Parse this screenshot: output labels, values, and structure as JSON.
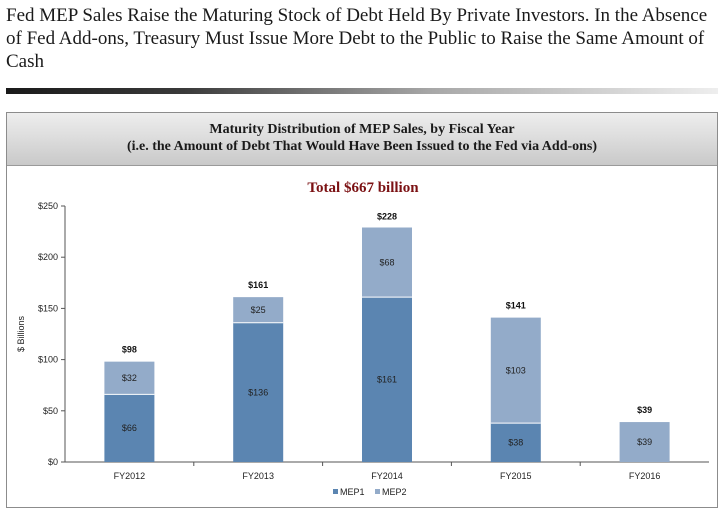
{
  "slide": {
    "title": "Fed MEP Sales Raise the Maturing Stock of  Debt Held By Private Investors. In the Absence of  Fed Add-ons, Treasury Must Issue More Debt to the Public to Raise the Same Amount of  Cash"
  },
  "chart_header": {
    "line1": "Maturity Distribution of MEP Sales, by Fiscal Year",
    "line2": "(i.e.  the Amount of Debt That Would Have Been Issued to the Fed via Add-ons)"
  },
  "colors": {
    "mep1": "#5b85b1",
    "mep2": "#93abc9",
    "total_label": "#7b1113",
    "axis": "#555555"
  },
  "chart_data": {
    "type": "bar",
    "stacked": true,
    "title": "Total $667 billion",
    "ylabel": "$ Billions",
    "xlabel": "",
    "ylim": [
      0,
      250
    ],
    "yticks": [
      0,
      50,
      100,
      150,
      200,
      250
    ],
    "ytick_labels": [
      "$0",
      "$50",
      "$100",
      "$150",
      "$200",
      "$250"
    ],
    "categories": [
      "FY2012",
      "FY2013",
      "FY2014",
      "FY2015",
      "FY2016"
    ],
    "series": [
      {
        "name": "MEP1",
        "values": [
          66,
          136,
          161,
          38,
          0
        ],
        "labels": [
          "$66",
          "$136",
          "$161",
          "$38",
          ""
        ]
      },
      {
        "name": "MEP2",
        "values": [
          32,
          25,
          68,
          103,
          39
        ],
        "labels": [
          "$32",
          "$25",
          "$68",
          "$103",
          "$39"
        ]
      }
    ],
    "totals": [
      98,
      161,
      228,
      141,
      39
    ],
    "total_labels": [
      "$98",
      "$161",
      "$228",
      "$141",
      "$39"
    ],
    "legend": {
      "position": "bottom",
      "items": [
        {
          "name": "MEP1",
          "marker": "■"
        },
        {
          "name": "MEP2",
          "marker": "■"
        }
      ]
    },
    "grid": false
  }
}
